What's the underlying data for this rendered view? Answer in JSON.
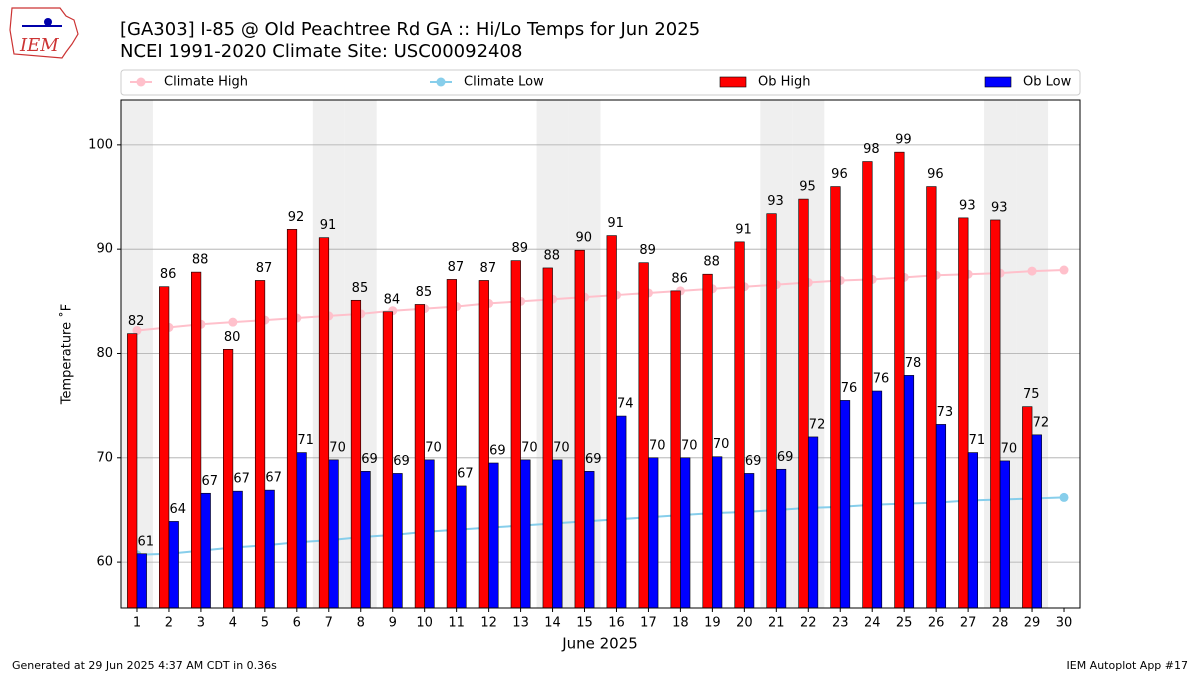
{
  "logo_text": "IEM",
  "footer_left": "Generated at 29 Jun 2025 4:37 AM CDT in 0.36s",
  "footer_right": "IEM Autoplot App #17",
  "chart_data": {
    "type": "bar",
    "title": "[GA303] I-85 @ Old Peachtree Rd  GA :: Hi/Lo Temps for Jun 2025",
    "subtitle": "NCEI 1991-2020 Climate Site: USC00092408",
    "xlabel": "June 2025",
    "ylabel": "Temperature ˚F",
    "x": [
      1,
      2,
      3,
      4,
      5,
      6,
      7,
      8,
      9,
      10,
      11,
      12,
      13,
      14,
      15,
      16,
      17,
      18,
      19,
      20,
      21,
      22,
      23,
      24,
      25,
      26,
      27,
      28,
      29,
      30
    ],
    "xlim": [
      0.5,
      30.5
    ],
    "xticks": [
      1,
      2,
      3,
      4,
      5,
      6,
      7,
      8,
      9,
      10,
      11,
      12,
      13,
      14,
      15,
      16,
      17,
      18,
      19,
      20,
      21,
      22,
      23,
      24,
      25,
      26,
      27,
      28,
      29,
      30
    ],
    "ylim": [
      55.6,
      104.3
    ],
    "yticks": [
      60,
      70,
      80,
      90,
      100
    ],
    "grid": true,
    "shaded_days": [
      1,
      7,
      8,
      14,
      15,
      21,
      22,
      28,
      29
    ],
    "shade_color": "#efefef",
    "legend": "top",
    "series": [
      {
        "name": "Climate High",
        "type": "line",
        "color": "pink",
        "values": [
          82.2,
          82.5,
          82.8,
          83.0,
          83.2,
          83.4,
          83.6,
          83.8,
          84.1,
          84.3,
          84.5,
          84.8,
          85.0,
          85.2,
          85.4,
          85.6,
          85.8,
          86.0,
          86.2,
          86.4,
          86.6,
          86.8,
          87.0,
          87.1,
          87.3,
          87.5,
          87.6,
          87.7,
          87.9,
          88.0
        ]
      },
      {
        "name": "Climate Low",
        "type": "line",
        "color": "skyblue",
        "values": [
          60.7,
          60.8,
          61.1,
          61.4,
          61.6,
          61.9,
          62.1,
          62.4,
          62.6,
          62.9,
          63.1,
          63.3,
          63.5,
          63.7,
          63.9,
          64.1,
          64.3,
          64.5,
          64.7,
          64.8,
          65.0,
          65.2,
          65.3,
          65.5,
          65.6,
          65.7,
          65.9,
          66.0,
          66.1,
          66.2
        ]
      },
      {
        "name": "Ob High",
        "type": "bar",
        "color": "#ff0000",
        "values": [
          81.9,
          86.4,
          87.8,
          80.4,
          87.0,
          91.9,
          91.1,
          85.1,
          84.0,
          84.7,
          87.1,
          87.0,
          88.9,
          88.2,
          89.9,
          91.3,
          88.7,
          86.0,
          87.6,
          90.7,
          93.4,
          94.8,
          96.0,
          98.4,
          99.3,
          96.0,
          93.0,
          92.8,
          74.9,
          null
        ],
        "value_labels": [
          "82",
          "86",
          "88",
          "80",
          "87",
          "92",
          "91",
          "85",
          "84",
          "85",
          "87",
          "87",
          "89",
          "88",
          "90",
          "91",
          "89",
          "86",
          "88",
          "91",
          "93",
          "95",
          "96",
          "98",
          "99",
          "96",
          "93",
          "93",
          "75",
          null
        ]
      },
      {
        "name": "Ob Low",
        "type": "bar",
        "color": "#0000ff",
        "values": [
          60.8,
          63.9,
          66.6,
          66.8,
          66.9,
          70.5,
          69.8,
          68.7,
          68.5,
          69.8,
          67.3,
          69.5,
          69.8,
          69.8,
          68.7,
          74.0,
          70.0,
          70.0,
          70.1,
          68.5,
          68.9,
          72.0,
          75.5,
          76.4,
          77.9,
          73.2,
          70.5,
          69.7,
          72.2,
          null
        ],
        "value_labels": [
          "61",
          "64",
          "67",
          "67",
          "67",
          "71",
          "70",
          "69",
          "69",
          "70",
          "67",
          "69",
          "70",
          "70",
          "69",
          "74",
          "70",
          "70",
          "70",
          "69",
          "69",
          "72",
          "76",
          "76",
          "78",
          "73",
          "71",
          "70",
          "72",
          null
        ]
      }
    ]
  }
}
